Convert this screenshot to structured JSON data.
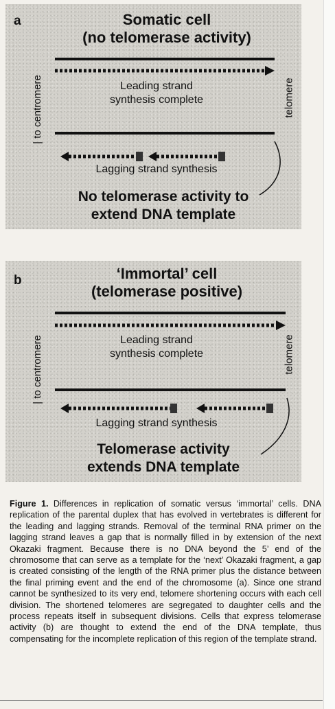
{
  "panel_a": {
    "letter": "a",
    "title_line1": "Somatic cell",
    "title_line2": "(no telomerase activity)",
    "left_label": "to centromere",
    "right_label": "telomere",
    "leading_line1": "Leading strand",
    "leading_line2": "synthesis complete",
    "lagging": "Lagging strand synthesis",
    "bottom_line1": "No telomerase activity to",
    "bottom_line2": "extend DNA template"
  },
  "panel_b": {
    "letter": "b",
    "title_line1": "‘Immortal’ cell",
    "title_line2": "(telomerase positive)",
    "left_label": "to centromere",
    "right_label": "telomere",
    "leading_line1": "Leading strand",
    "leading_line2": "synthesis complete",
    "lagging": "Lagging strand synthesis",
    "bottom_line1": "Telomerase activity",
    "bottom_line2": "extends DNA template"
  },
  "caption": {
    "label": "Figure 1.",
    "text": "Differences in replication of somatic versus ‘immortal’ cells. DNA replication of the parental duplex that has evolved in vertebrates is different for the leading and lagging strands. Removal of the terminal RNA primer on the lagging strand leaves a gap that is normally filled in by extension of the next Okazaki fragment. Because there is no DNA beyond the 5’ end of the chromosome that can serve as a template for the ‘next’ Okazaki fragment, a gap is created consisting of the length of the RNA primer plus the distance between the final priming event and the end of the chromosome (a). Since one strand cannot be synthesized to its very end, telomere shortening occurs with each cell division. The shortened telomeres are segregated to daughter cells and the process repeats itself in subsequent divisions. Cells that express telomerase activity (b) are thought to extend the end of the DNA template, thus compensating for the incomplete replication of this region of the template strand."
  }
}
